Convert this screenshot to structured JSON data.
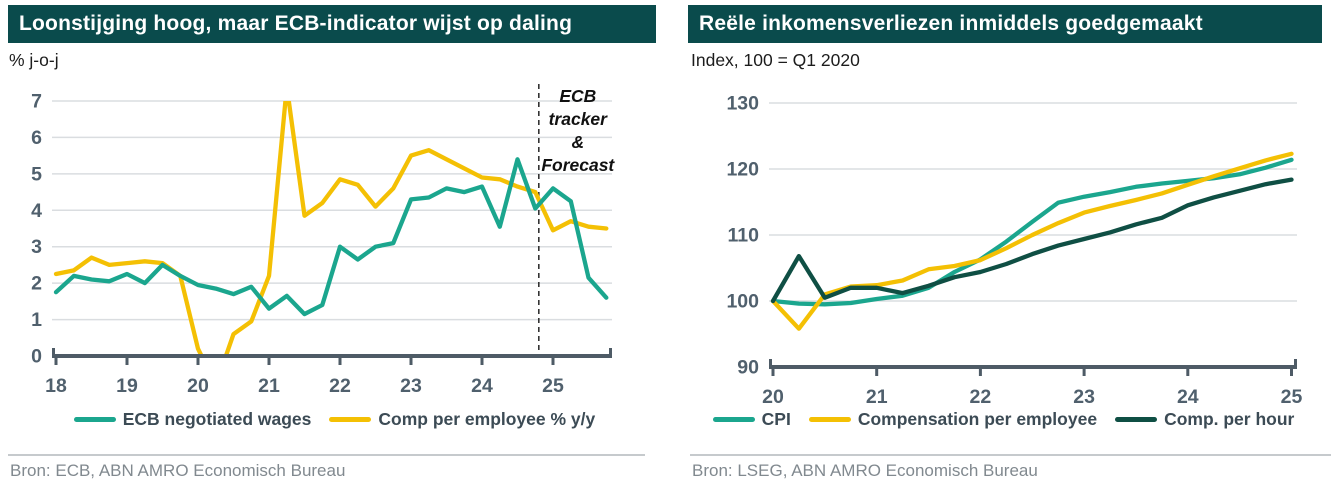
{
  "colors": {
    "title_bar_bg": "#0a4b4c",
    "title_text": "#ffffff",
    "axis": "#4e5b66",
    "grid": "#dadde0",
    "tick_text": "#50606d",
    "annotation_text": "#111111",
    "dashed_line": "#333333",
    "legend_text": "#3c4b55",
    "source_text": "#81898f",
    "teal": "#1ba68e",
    "yellow": "#f4c004",
    "dark_green": "#0f4f44"
  },
  "chart_data": [
    {
      "type": "line",
      "title": "Loonstijging hoog, maar ECB-indicator wijst op daling",
      "subtitle": "% j-o-j",
      "source": "Bron: ECB, ABN AMRO Economisch Bureau",
      "xlim": [
        18,
        25.77
      ],
      "ylim": [
        0,
        7
      ],
      "xticks": [
        18,
        19,
        20,
        21,
        22,
        23,
        24,
        25
      ],
      "yticks": [
        0,
        1,
        2,
        3,
        4,
        5,
        6,
        7
      ],
      "grid": "horizontal",
      "legend_position": "bottom",
      "x": [
        18,
        18.25,
        18.5,
        18.75,
        19,
        19.25,
        19.5,
        19.75,
        20,
        20.25,
        20.5,
        20.75,
        21,
        21.25,
        21.5,
        21.75,
        22,
        22.25,
        22.5,
        22.75,
        23,
        23.25,
        23.5,
        23.75,
        24,
        24.25,
        24.5,
        24.75,
        25,
        25.25,
        25.5,
        25.75
      ],
      "series": [
        {
          "name": "ECB negotiated wages",
          "color": "#1ba68e",
          "values": [
            1.75,
            2.2,
            2.1,
            2.05,
            2.25,
            2.0,
            2.5,
            2.2,
            1.95,
            1.85,
            1.7,
            1.9,
            1.3,
            1.65,
            1.15,
            1.4,
            3.0,
            2.65,
            3.0,
            3.1,
            4.3,
            4.35,
            4.6,
            4.5,
            4.65,
            3.55,
            5.4,
            4.05,
            4.6,
            4.25,
            2.15,
            1.6
          ]
        },
        {
          "name": "Comp per employee % y/y",
          "color": "#f4c004",
          "values": [
            2.25,
            2.35,
            2.7,
            2.5,
            2.55,
            2.6,
            2.55,
            2.2,
            0.2,
            -0.8,
            0.6,
            0.95,
            2.2,
            7.4,
            3.85,
            4.2,
            4.85,
            4.7,
            4.1,
            4.6,
            5.5,
            5.65,
            5.4,
            5.15,
            4.9,
            4.85,
            4.65,
            4.5,
            3.45,
            3.7,
            3.55,
            3.5
          ]
        }
      ],
      "draw_order": [
        1,
        0
      ],
      "vline": {
        "x": 24.8,
        "style": "dashed"
      },
      "annotation": {
        "x": 24.8,
        "lines": [
          "ECB",
          "tracker",
          "&",
          "Forecast"
        ],
        "style": "bold-italic"
      }
    },
    {
      "type": "line",
      "title": "Reële inkomensverliezen inmiddels goedgemaakt",
      "subtitle": "Index, 100 = Q1 2020",
      "source": "Bron: LSEG, ABN AMRO Economisch Bureau",
      "xlim": [
        20,
        25.07
      ],
      "ylim": [
        90,
        130
      ],
      "xticks": [
        20,
        21,
        22,
        23,
        24,
        25
      ],
      "yticks": [
        90,
        100,
        110,
        120,
        130
      ],
      "grid": "horizontal",
      "legend_position": "bottom",
      "x": [
        20,
        20.25,
        20.5,
        20.75,
        21,
        21.25,
        21.5,
        21.75,
        22,
        22.25,
        22.5,
        22.75,
        23,
        23.25,
        23.5,
        23.75,
        24,
        24.25,
        24.5,
        24.75,
        25
      ],
      "series": [
        {
          "name": "CPI",
          "color": "#1ba68e",
          "values": [
            100,
            99.6,
            99.5,
            99.7,
            100.3,
            100.8,
            102.0,
            104.4,
            106.3,
            109.0,
            112.0,
            114.9,
            115.8,
            116.5,
            117.3,
            117.8,
            118.2,
            118.6,
            119.2,
            120.2,
            121.4
          ]
        },
        {
          "name": "Compensation per employee",
          "color": "#f4c004",
          "values": [
            100,
            95.8,
            101.0,
            102.2,
            102.4,
            103.1,
            104.8,
            105.3,
            106.2,
            108.0,
            110.0,
            111.8,
            113.4,
            114.4,
            115.3,
            116.3,
            117.6,
            118.9,
            120.1,
            121.3,
            122.3
          ]
        },
        {
          "name": "Comp. per hour",
          "color": "#0f4f44",
          "values": [
            100,
            106.8,
            100.5,
            102.0,
            102.0,
            101.2,
            102.3,
            103.6,
            104.4,
            105.6,
            107.1,
            108.4,
            109.4,
            110.4,
            111.6,
            112.6,
            114.5,
            115.7,
            116.7,
            117.7,
            118.4
          ]
        }
      ],
      "draw_order": [
        0,
        1,
        2
      ]
    }
  ]
}
